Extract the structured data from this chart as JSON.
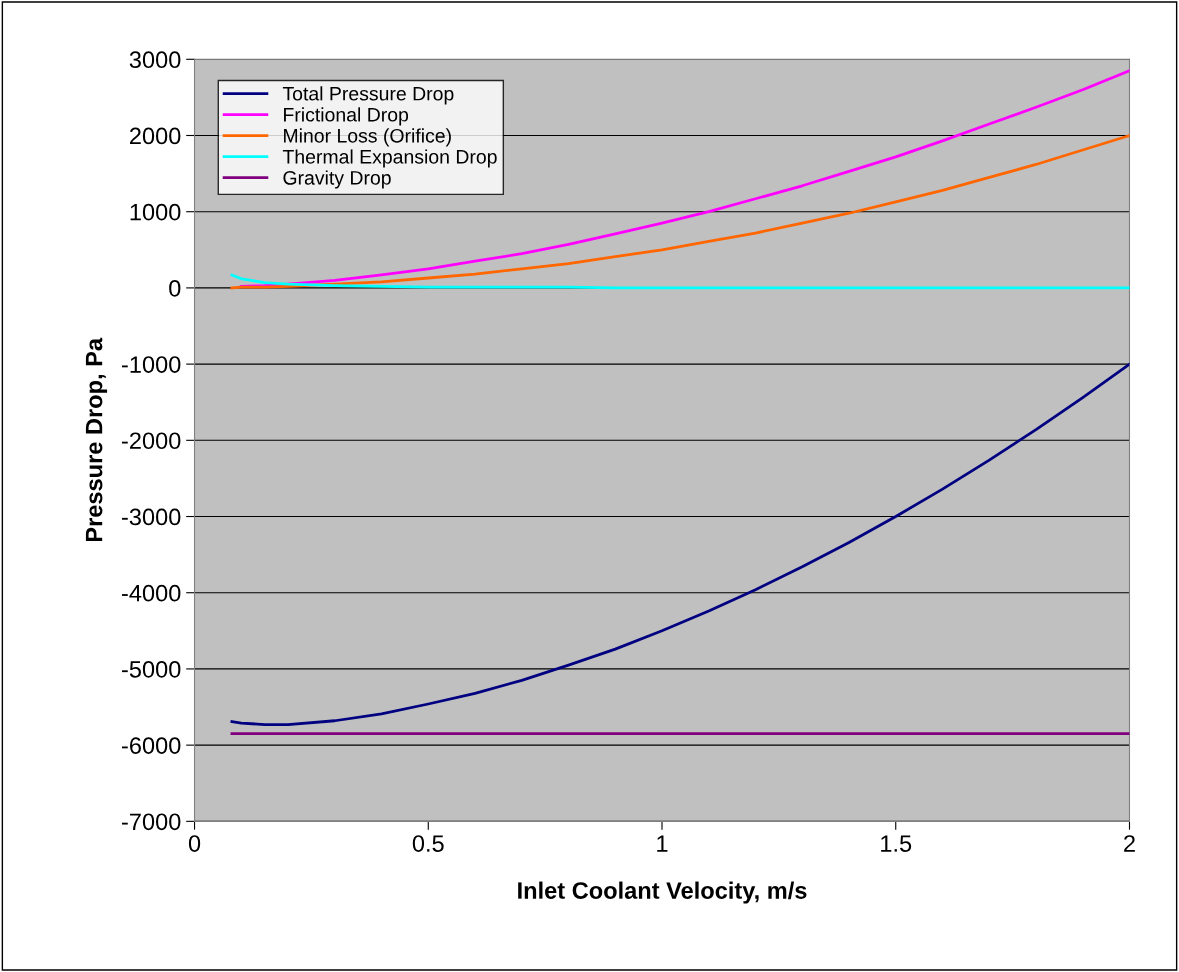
{
  "chart_data": {
    "type": "line",
    "xlabel": "Inlet Coolant Velocity, m/s",
    "ylabel": "Pressure Drop, Pa",
    "x": [
      0.08,
      0.1,
      0.15,
      0.2,
      0.3,
      0.4,
      0.5,
      0.6,
      0.7,
      0.8,
      0.9,
      1.0,
      1.1,
      1.2,
      1.3,
      1.4,
      1.5,
      1.6,
      1.7,
      1.8,
      1.9,
      2.0
    ],
    "series": [
      {
        "name": "Total Pressure Drop",
        "color": "#000080",
        "values": [
          -5690,
          -5710,
          -5730,
          -5730,
          -5680,
          -5590,
          -5460,
          -5320,
          -5150,
          -4950,
          -4740,
          -4500,
          -4240,
          -3960,
          -3660,
          -3340,
          -3000,
          -2640,
          -2260,
          -1860,
          -1440,
          -1000
        ]
      },
      {
        "name": "Frictional Drop",
        "color": "#ff00ff",
        "values": [
          null,
          20,
          30,
          50,
          100,
          170,
          250,
          350,
          450,
          570,
          710,
          850,
          1000,
          1170,
          1340,
          1530,
          1720,
          1930,
          2150,
          2370,
          2600,
          2850
        ]
      },
      {
        "name": "Minor Loss (Orifice)",
        "color": "#ff6600",
        "values": [
          0,
          10,
          10,
          20,
          50,
          80,
          130,
          180,
          250,
          320,
          410,
          500,
          610,
          720,
          850,
          980,
          1130,
          1280,
          1450,
          1620,
          1810,
          2000
        ]
      },
      {
        "name": "Thermal Expansion Drop",
        "color": "#00ffff",
        "values": [
          170,
          120,
          70,
          50,
          30,
          20,
          10,
          10,
          10,
          10,
          0,
          0,
          0,
          0,
          0,
          0,
          0,
          0,
          0,
          0,
          0,
          0
        ]
      },
      {
        "name": "Gravity Drop",
        "color": "#800080",
        "values": [
          -5850,
          -5850,
          -5850,
          -5850,
          -5850,
          -5850,
          -5850,
          -5850,
          -5850,
          -5850,
          -5850,
          -5850,
          -5850,
          -5850,
          -5850,
          -5850,
          -5850,
          -5850,
          -5850,
          -5850,
          -5850,
          -5850
        ]
      }
    ],
    "xlim": [
      0,
      2
    ],
    "xticks": [
      0,
      0.5,
      1,
      1.5,
      2
    ],
    "ylim": [
      -7000,
      3000
    ],
    "yticks": [
      -7000,
      -6000,
      -5000,
      -4000,
      -3000,
      -2000,
      -1000,
      0,
      1000,
      2000,
      3000
    ],
    "grid": "y",
    "legend": "top left",
    "marker": "none",
    "line_style": "solid"
  }
}
